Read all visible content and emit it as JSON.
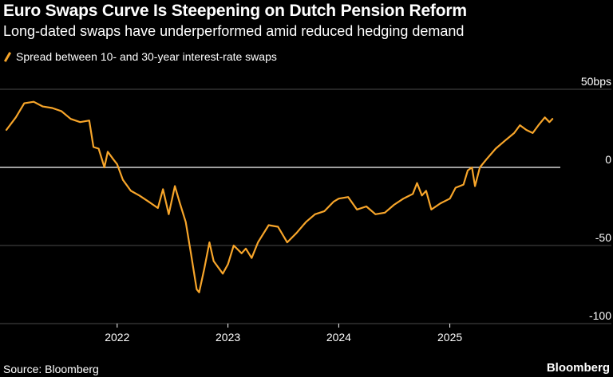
{
  "header": {
    "title": "Euro Swaps Curve Is Steepening on Dutch Pension Reform",
    "subtitle": "Long-dated swaps have underperformed amid reduced hedging demand"
  },
  "footer": {
    "source": "Source: Bloomberg",
    "brand": "Bloomberg"
  },
  "colors": {
    "background": "#000000",
    "series": "#f7a52a",
    "gridline": "#4a4a4a",
    "zero_line": "#ffffff"
  },
  "chart_data": {
    "type": "line",
    "title": "Euro Swaps Curve Is Steepening on Dutch Pension Reform",
    "subtitle": "Long-dated swaps have underperformed amid reduced hedging demand",
    "legend": "top-left",
    "grid": true,
    "y_unit": "bps",
    "ylim": [
      -100,
      50
    ],
    "y_ticks": [
      {
        "value": 50,
        "label": "50bps"
      },
      {
        "value": 0,
        "label": "0"
      },
      {
        "value": -50,
        "label": "-50"
      },
      {
        "value": -100,
        "label": "-100"
      }
    ],
    "xlim": [
      "2021-01-01",
      "2025-12-31"
    ],
    "x_ticks": [
      {
        "value": "2022-01-01",
        "label": "2022"
      },
      {
        "value": "2023-01-01",
        "label": "2023"
      },
      {
        "value": "2024-01-01",
        "label": "2024"
      },
      {
        "value": "2025-01-01",
        "label": "2025"
      }
    ],
    "series": [
      {
        "name": "Spread between 10- and 30-year interest-rate swaps",
        "points": [
          [
            "2021-01-01",
            24
          ],
          [
            "2021-02-01",
            32
          ],
          [
            "2021-03-01",
            41
          ],
          [
            "2021-04-01",
            42
          ],
          [
            "2021-05-01",
            39
          ],
          [
            "2021-06-01",
            38
          ],
          [
            "2021-07-01",
            36
          ],
          [
            "2021-08-01",
            31
          ],
          [
            "2021-09-01",
            29
          ],
          [
            "2021-10-01",
            30
          ],
          [
            "2021-10-15",
            13
          ],
          [
            "2021-11-01",
            12
          ],
          [
            "2021-11-20",
            0
          ],
          [
            "2021-12-01",
            10
          ],
          [
            "2021-12-20",
            5
          ],
          [
            "2022-01-01",
            2
          ],
          [
            "2022-01-20",
            -8
          ],
          [
            "2022-02-15",
            -15
          ],
          [
            "2022-03-15",
            -18
          ],
          [
            "2022-04-15",
            -22
          ],
          [
            "2022-05-15",
            -26
          ],
          [
            "2022-06-01",
            -14
          ],
          [
            "2022-06-20",
            -30
          ],
          [
            "2022-07-10",
            -12
          ],
          [
            "2022-07-25",
            -22
          ],
          [
            "2022-08-15",
            -35
          ],
          [
            "2022-09-01",
            -55
          ],
          [
            "2022-09-20",
            -78
          ],
          [
            "2022-09-28",
            -80
          ],
          [
            "2022-10-15",
            -65
          ],
          [
            "2022-11-01",
            -48
          ],
          [
            "2022-11-15",
            -60
          ],
          [
            "2022-12-15",
            -68
          ],
          [
            "2023-01-01",
            -62
          ],
          [
            "2023-01-20",
            -50
          ],
          [
            "2023-02-15",
            -55
          ],
          [
            "2023-03-01",
            -52
          ],
          [
            "2023-03-20",
            -58
          ],
          [
            "2023-04-10",
            -48
          ],
          [
            "2023-05-15",
            -37
          ],
          [
            "2023-06-15",
            -38
          ],
          [
            "2023-07-15",
            -48
          ],
          [
            "2023-08-15",
            -42
          ],
          [
            "2023-09-15",
            -35
          ],
          [
            "2023-10-15",
            -30
          ],
          [
            "2023-11-15",
            -28
          ],
          [
            "2023-12-15",
            -22
          ],
          [
            "2024-01-01",
            -20
          ],
          [
            "2024-02-01",
            -19
          ],
          [
            "2024-03-01",
            -27
          ],
          [
            "2024-04-01",
            -25
          ],
          [
            "2024-05-01",
            -30
          ],
          [
            "2024-06-01",
            -29
          ],
          [
            "2024-07-01",
            -24
          ],
          [
            "2024-08-01",
            -20
          ],
          [
            "2024-09-01",
            -17
          ],
          [
            "2024-09-15",
            -10
          ],
          [
            "2024-10-01",
            -18
          ],
          [
            "2024-10-15",
            -15
          ],
          [
            "2024-11-01",
            -27
          ],
          [
            "2024-12-01",
            -23
          ],
          [
            "2025-01-01",
            -20
          ],
          [
            "2025-01-20",
            -13
          ],
          [
            "2025-02-15",
            -11
          ],
          [
            "2025-03-01",
            -2
          ],
          [
            "2025-03-15",
            0
          ],
          [
            "2025-03-25",
            -12
          ],
          [
            "2025-04-10",
            0
          ],
          [
            "2025-05-01",
            5
          ],
          [
            "2025-06-01",
            12
          ],
          [
            "2025-07-01",
            17
          ],
          [
            "2025-08-01",
            22
          ],
          [
            "2025-08-20",
            27
          ],
          [
            "2025-09-10",
            24
          ],
          [
            "2025-10-01",
            22
          ],
          [
            "2025-10-20",
            27
          ],
          [
            "2025-11-10",
            32
          ],
          [
            "2025-11-25",
            29
          ],
          [
            "2025-12-05",
            31
          ]
        ]
      }
    ]
  }
}
